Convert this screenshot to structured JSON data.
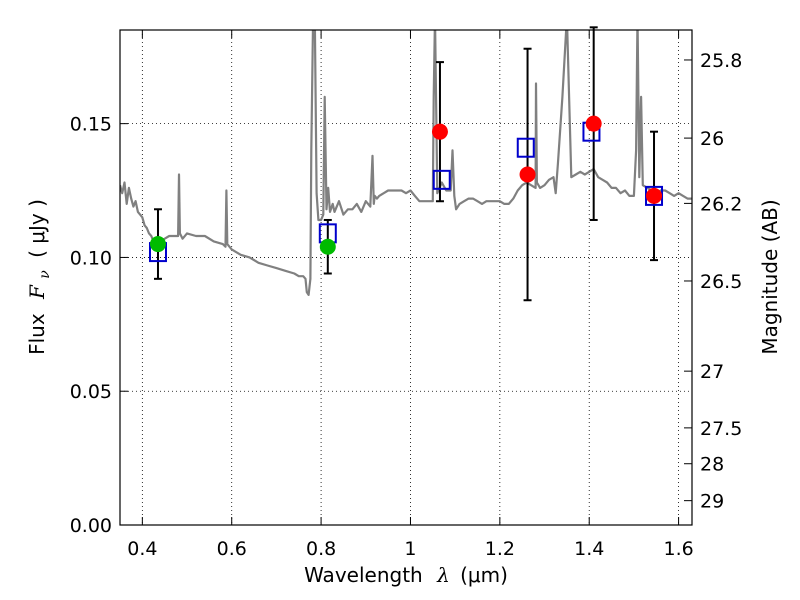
{
  "chart_data": {
    "type": "scatter",
    "xlabel_text": "Wavelength",
    "xlabel_symbol": "λ",
    "xlabel_unit": "(μm)",
    "ylabel_text": "Flux",
    "ylabel_symbol_main": "F",
    "ylabel_symbol_sub": "ν",
    "ylabel_unit": "( μJy )",
    "y2label": "Magnitude (AB)",
    "xlim": [
      0.35,
      1.63
    ],
    "ylim": [
      0.0,
      0.185
    ],
    "xticks": [
      0.4,
      0.6,
      0.8,
      1.0,
      1.2,
      1.4,
      1.6
    ],
    "xtick_labels": [
      "0.4",
      "0.6",
      "0.8",
      "1",
      "1.2",
      "1.4",
      "1.6"
    ],
    "yticks": [
      0.0,
      0.05,
      0.1,
      0.15
    ],
    "ytick_labels": [
      "0.00",
      "0.05",
      "0.10",
      "0.15"
    ],
    "y2ticks": [
      {
        "label": "25.8",
        "flux": 0.1738
      },
      {
        "label": "26",
        "flux": 0.1446
      },
      {
        "label": "26.2",
        "flux": 0.1202
      },
      {
        "label": "26.5",
        "flux": 0.0912
      },
      {
        "label": "27",
        "flux": 0.0575
      },
      {
        "label": "27.5",
        "flux": 0.0363
      },
      {
        "label": "28",
        "flux": 0.0229
      },
      {
        "label": "29",
        "flux": 0.0091
      }
    ],
    "grid": true,
    "colors": {
      "model_line": "#808080",
      "model_squares": "#0000cc",
      "observed_detection": "#ff0000",
      "observed_other": "#00bb00",
      "errorbar": "#000000"
    },
    "series": [
      {
        "name": "model spectrum",
        "kind": "line",
        "x": [
          0.35,
          0.355,
          0.36,
          0.365,
          0.37,
          0.375,
          0.38,
          0.385,
          0.39,
          0.395,
          0.4,
          0.405,
          0.41,
          0.415,
          0.42,
          0.425,
          0.43,
          0.44,
          0.45,
          0.46,
          0.47,
          0.48,
          0.482,
          0.484,
          0.49,
          0.5,
          0.52,
          0.54,
          0.56,
          0.58,
          0.586,
          0.588,
          0.59,
          0.6,
          0.62,
          0.64,
          0.66,
          0.68,
          0.7,
          0.72,
          0.74,
          0.75,
          0.76,
          0.765,
          0.768,
          0.772,
          0.776,
          0.778,
          0.782,
          0.784,
          0.786,
          0.79,
          0.794,
          0.798,
          0.8,
          0.805,
          0.808,
          0.812,
          0.816,
          0.82,
          0.826,
          0.83,
          0.84,
          0.85,
          0.86,
          0.87,
          0.88,
          0.89,
          0.9,
          0.91,
          0.915,
          0.918,
          0.92,
          0.925,
          0.93,
          0.94,
          0.95,
          0.96,
          0.97,
          0.98,
          0.99,
          1.0,
          1.01,
          1.02,
          1.03,
          1.04,
          1.05,
          1.052,
          1.055,
          1.06,
          1.07,
          1.08,
          1.09,
          1.094,
          1.098,
          1.102,
          1.11,
          1.12,
          1.13,
          1.14,
          1.15,
          1.16,
          1.17,
          1.18,
          1.19,
          1.2,
          1.21,
          1.215,
          1.22,
          1.23,
          1.24,
          1.25,
          1.26,
          1.27,
          1.28,
          1.281,
          1.283,
          1.29,
          1.3,
          1.31,
          1.32,
          1.325,
          1.33,
          1.34,
          1.35,
          1.36,
          1.37,
          1.38,
          1.39,
          1.4,
          1.41,
          1.42,
          1.43,
          1.44,
          1.45,
          1.46,
          1.47,
          1.48,
          1.49,
          1.5,
          1.505,
          1.508,
          1.512,
          1.516,
          1.52,
          1.53,
          1.54,
          1.55,
          1.56,
          1.57,
          1.58,
          1.59,
          1.6,
          1.61,
          1.62,
          1.63
        ],
        "y": [
          0.127,
          0.124,
          0.128,
          0.12,
          0.126,
          0.122,
          0.119,
          0.121,
          0.117,
          0.116,
          0.115,
          0.112,
          0.111,
          0.109,
          0.108,
          0.106,
          0.106,
          0.106,
          0.107,
          0.108,
          0.108,
          0.108,
          0.131,
          0.109,
          0.107,
          0.109,
          0.108,
          0.108,
          0.106,
          0.105,
          0.104,
          0.125,
          0.105,
          0.103,
          0.101,
          0.1,
          0.098,
          0.097,
          0.096,
          0.095,
          0.094,
          0.093,
          0.093,
          0.092,
          0.087,
          0.086,
          0.092,
          0.14,
          0.19,
          0.2,
          0.19,
          0.124,
          0.114,
          0.114,
          0.114,
          0.116,
          0.16,
          0.118,
          0.126,
          0.117,
          0.12,
          0.117,
          0.121,
          0.116,
          0.118,
          0.118,
          0.12,
          0.117,
          0.121,
          0.119,
          0.138,
          0.12,
          0.123,
          0.122,
          0.123,
          0.124,
          0.125,
          0.125,
          0.125,
          0.125,
          0.124,
          0.125,
          0.123,
          0.121,
          0.121,
          0.121,
          0.121,
          0.16,
          0.19,
          0.124,
          0.128,
          0.125,
          0.125,
          0.14,
          0.123,
          0.118,
          0.12,
          0.121,
          0.122,
          0.122,
          0.121,
          0.12,
          0.121,
          0.121,
          0.121,
          0.121,
          0.12,
          0.12,
          0.12,
          0.122,
          0.125,
          0.127,
          0.128,
          0.127,
          0.126,
          0.165,
          0.128,
          0.126,
          0.127,
          0.129,
          0.13,
          0.124,
          0.135,
          0.16,
          0.19,
          0.13,
          0.131,
          0.132,
          0.131,
          0.132,
          0.133,
          0.13,
          0.129,
          0.128,
          0.126,
          0.126,
          0.124,
          0.125,
          0.123,
          0.123,
          0.14,
          0.19,
          0.13,
          0.16,
          0.127,
          0.126,
          0.125,
          0.124,
          0.125,
          0.125,
          0.124,
          0.123,
          0.124,
          0.123,
          0.122,
          0.122
        ]
      },
      {
        "name": "model synthetic photometry",
        "kind": "open-square",
        "x": [
          0.435,
          0.815,
          1.07,
          1.258,
          1.405,
          1.545
        ],
        "y": [
          0.102,
          0.109,
          0.129,
          0.141,
          0.147,
          0.123
        ]
      },
      {
        "name": "observed flux (detections)",
        "kind": "filled-circle",
        "x": [
          1.066,
          1.262,
          1.41,
          1.545
        ],
        "y": [
          0.147,
          0.131,
          0.15,
          0.123
        ],
        "err": [
          0.026,
          0.047,
          0.036,
          0.024
        ]
      },
      {
        "name": "observed flux (other bands)",
        "kind": "filled-circle",
        "x": [
          0.435,
          0.815
        ],
        "y": [
          0.105,
          0.104
        ],
        "err": [
          0.013,
          0.01
        ]
      }
    ]
  }
}
